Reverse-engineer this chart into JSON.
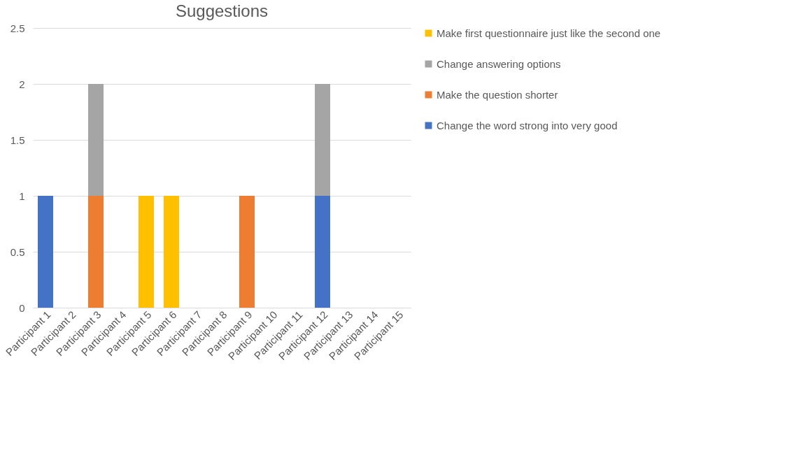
{
  "chart_data": {
    "type": "bar",
    "title": "Suggestions",
    "stacked": true,
    "categories": [
      "Participant 1",
      "Participant 2",
      "Participant 3",
      "Participant 4",
      "Participant 5",
      "Participant 6",
      "Participant 7",
      "Participant 8",
      "Participant 9",
      "Participant 10",
      "Participant 11",
      "Participant 12",
      "Participant 13",
      "Participant 14",
      "Participant 15"
    ],
    "series": [
      {
        "name": "Change the word strong into very good",
        "color": "#4472c4",
        "values": [
          1,
          0,
          0,
          0,
          0,
          0,
          0,
          0,
          0,
          0,
          0,
          1,
          0,
          0,
          0
        ]
      },
      {
        "name": "Make the question shorter",
        "color": "#ed7d31",
        "values": [
          0,
          0,
          1,
          0,
          0,
          0,
          0,
          0,
          1,
          0,
          0,
          0,
          0,
          0,
          0
        ]
      },
      {
        "name": "Change answering options",
        "color": "#a5a5a5",
        "values": [
          0,
          0,
          1,
          0,
          0,
          0,
          0,
          0,
          0,
          0,
          0,
          1,
          0,
          0,
          0
        ]
      },
      {
        "name": "Make first questionnaire just like the second one",
        "color": "#ffc000",
        "values": [
          0,
          0,
          0,
          0,
          1,
          1,
          0,
          0,
          0,
          0,
          0,
          0,
          0,
          0,
          0
        ]
      }
    ],
    "ylim": [
      0,
      2.5
    ],
    "yticks": [
      0,
      0.5,
      1,
      1.5,
      2,
      2.5
    ],
    "grid": "y",
    "legend": "right"
  }
}
